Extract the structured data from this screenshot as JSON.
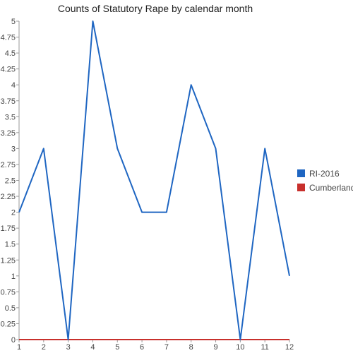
{
  "chart_data": {
    "type": "line",
    "title": "Counts of Statutory Rape by calendar month",
    "xlabel": "",
    "ylabel": "",
    "x": [
      1,
      2,
      3,
      4,
      5,
      6,
      7,
      8,
      9,
      10,
      11,
      12
    ],
    "x_tick_labels": [
      "1",
      "2",
      "3",
      "4",
      "5",
      "6",
      "7",
      "8",
      "9",
      "10",
      "11",
      "12"
    ],
    "ylim": [
      0,
      5
    ],
    "y_ticks": [
      0,
      0.25,
      0.5,
      0.75,
      1,
      1.25,
      1.5,
      1.75,
      2,
      2.25,
      2.5,
      2.75,
      3,
      3.25,
      3.5,
      3.75,
      4,
      4.25,
      4.5,
      4.75,
      5
    ],
    "y_tick_labels": [
      "0",
      "0.25",
      "0.5",
      "0.75",
      "1",
      "1.25",
      "1.5",
      "1.75",
      "2",
      "2.25",
      "2.5",
      "2.75",
      "3",
      "3.25",
      "3.5",
      "3.75",
      "4",
      "4.25",
      "4.5",
      "4.75",
      "5"
    ],
    "grid": false,
    "legend_position": "right",
    "series": [
      {
        "name": "RI-2016",
        "color": "#1f66c2",
        "values": [
          2,
          3,
          0,
          5,
          3,
          2,
          2,
          4,
          3,
          0,
          3,
          1
        ]
      },
      {
        "name": "Cumberland",
        "color": "#c8302c",
        "values": [
          0,
          0,
          0,
          0,
          0,
          0,
          0,
          0,
          0,
          0,
          0,
          0
        ]
      }
    ]
  }
}
